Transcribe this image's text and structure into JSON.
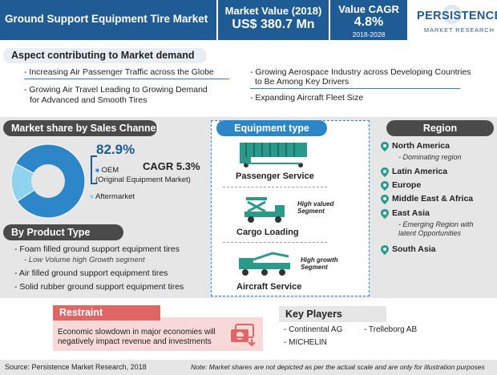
{
  "header": {
    "title": "Ground Support Equipment Tire Market",
    "market_value_label": "Market Value (2018)",
    "market_value": "US$ 380.7 Mn",
    "cagr_label": "Value CAGR",
    "cagr_value": "4.8%",
    "cagr_period": "2018-2028",
    "logo_main": "PERSISTENCE",
    "logo_sub": "MARKET RESEARCH"
  },
  "aspect": {
    "title": "Aspect contributing to Market demand",
    "items": [
      "- Increasing Air Passenger Traffic across the Globe",
      "- Growing Air Travel Leading to Growing Demand",
      "for Advanced and Smooth Tires",
      "- Growing Aerospace Industry across Developing Countries",
      "to Be Among Key Drivers",
      "- Expanding Aircraft Fleet Size"
    ]
  },
  "chart_data": {
    "type": "pie",
    "title": "Market share by Sales Channel",
    "slices": [
      {
        "label": "OEM",
        "value": 82.9,
        "color": "#2c86c8"
      },
      {
        "label": "Aftermarket",
        "value": 17.1,
        "color": "#8fd3ef"
      }
    ],
    "annotations": {
      "oem_pct": "82.9%",
      "oem_label": "OEM",
      "oem_desc": "(Original Equipment Market)",
      "aftermarket_label": "Aftermarket",
      "cagr": "CAGR 5.3%"
    }
  },
  "product": {
    "title": "By Product Type",
    "items": [
      "- Foam filled ground support equipment tires",
      "- Low Volume high Growth segment",
      "- Air filled ground support  equipment tires",
      "- Solid rubber ground support equipment tires"
    ]
  },
  "equipment": {
    "title": "Equipment type",
    "types": [
      {
        "label": "Passenger Service",
        "note": ""
      },
      {
        "label": "Cargo Loading",
        "note": "High valued Segment"
      },
      {
        "label": "Aircraft Service",
        "note": "High growth Segment"
      }
    ]
  },
  "region": {
    "title": "Region",
    "items": [
      {
        "name": "North America",
        "note": "- Dominating region"
      },
      {
        "name": "Latin America",
        "note": ""
      },
      {
        "name": "Europe",
        "note": ""
      },
      {
        "name": "Middle East & Africa",
        "note": ""
      },
      {
        "name": "East Asia",
        "note": "- Emerging Region with latent Opportunities"
      },
      {
        "name": "South Asia",
        "note": ""
      }
    ]
  },
  "restraint": {
    "title": "Restraint",
    "text": "Economic slowdown in major economies will negatively impact revenue and investments"
  },
  "key_players": {
    "title": "Key Players",
    "items": [
      "- Continental AG",
      "- Trelleborg AB",
      "- MICHELIN"
    ]
  },
  "footer": {
    "source": "Source: Persistence Market Research, 2018",
    "note": "Note: Market shares are not depicted as per the actual scale and are only for illustration purposes"
  },
  "colors": {
    "brand_blue": "#1f5c96",
    "accent_blue": "#2c86c8",
    "light_blue": "#8fd3ef",
    "pill_dark": "#4a4a4a",
    "restraint_red": "#e06666",
    "restraint_bg": "#f7d9d9",
    "band_gray": "#e6e6e6"
  }
}
